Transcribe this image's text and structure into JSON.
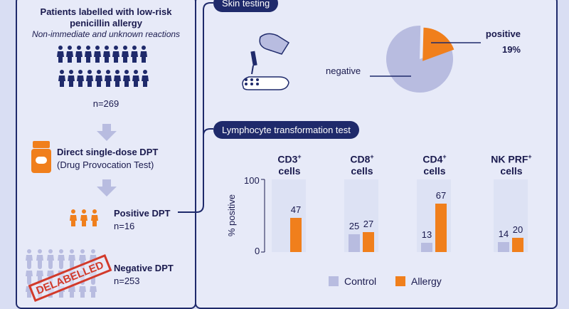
{
  "colors": {
    "navy": "#1f2a6b",
    "orange": "#f07f1c",
    "lavender": "#b8bce0",
    "panel": "#e7eaf8",
    "bg": "#d9def3",
    "red": "#d23a2b"
  },
  "left": {
    "title_line1": "Patients labelled with low-risk",
    "title_line2": "penicillin allergy",
    "subtitle": "Non-immediate and unknown reactions",
    "n_total": "n=269",
    "dpt_title": "Direct single-dose DPT",
    "dpt_sub": "(Drug Provocation Test)",
    "pos_label": "Positive DPT",
    "pos_n": "n=16",
    "neg_label": "Negative DPT",
    "neg_n": "n=253",
    "stamp": "DELABELLED",
    "icons": {
      "people": "person-icon",
      "arrow": "down-arrow-icon",
      "pill": "pill-bottle-icon"
    }
  },
  "skin": {
    "header": "Skin testing",
    "negative_label": "negative",
    "positive_label": "positive",
    "positive_pct": "19%",
    "icon": "skin-test-icon"
  },
  "ltt": {
    "header": "Lymphocyte transformation test",
    "ylabel": "% positive",
    "y_tick_top": "100",
    "y_tick_bottom": "0",
    "legend_control": "Control",
    "legend_allergy": "Allergy"
  },
  "chart_data": [
    {
      "type": "pie",
      "values": [
        81,
        19
      ],
      "labels": [
        "negative",
        "positive"
      ],
      "title": "Skin testing"
    },
    {
      "type": "bar",
      "title": "Lymphocyte transformation test",
      "ylabel": "% positive",
      "ylim": [
        0,
        100
      ],
      "categories": [
        "CD3+ cells",
        "CD8+ cells",
        "CD4+ cells",
        "NK PRF+ cells"
      ],
      "series": [
        {
          "name": "Control",
          "values": [
            null,
            25,
            13,
            14
          ]
        },
        {
          "name": "Allergy",
          "values": [
            47,
            27,
            67,
            20
          ]
        }
      ]
    }
  ]
}
